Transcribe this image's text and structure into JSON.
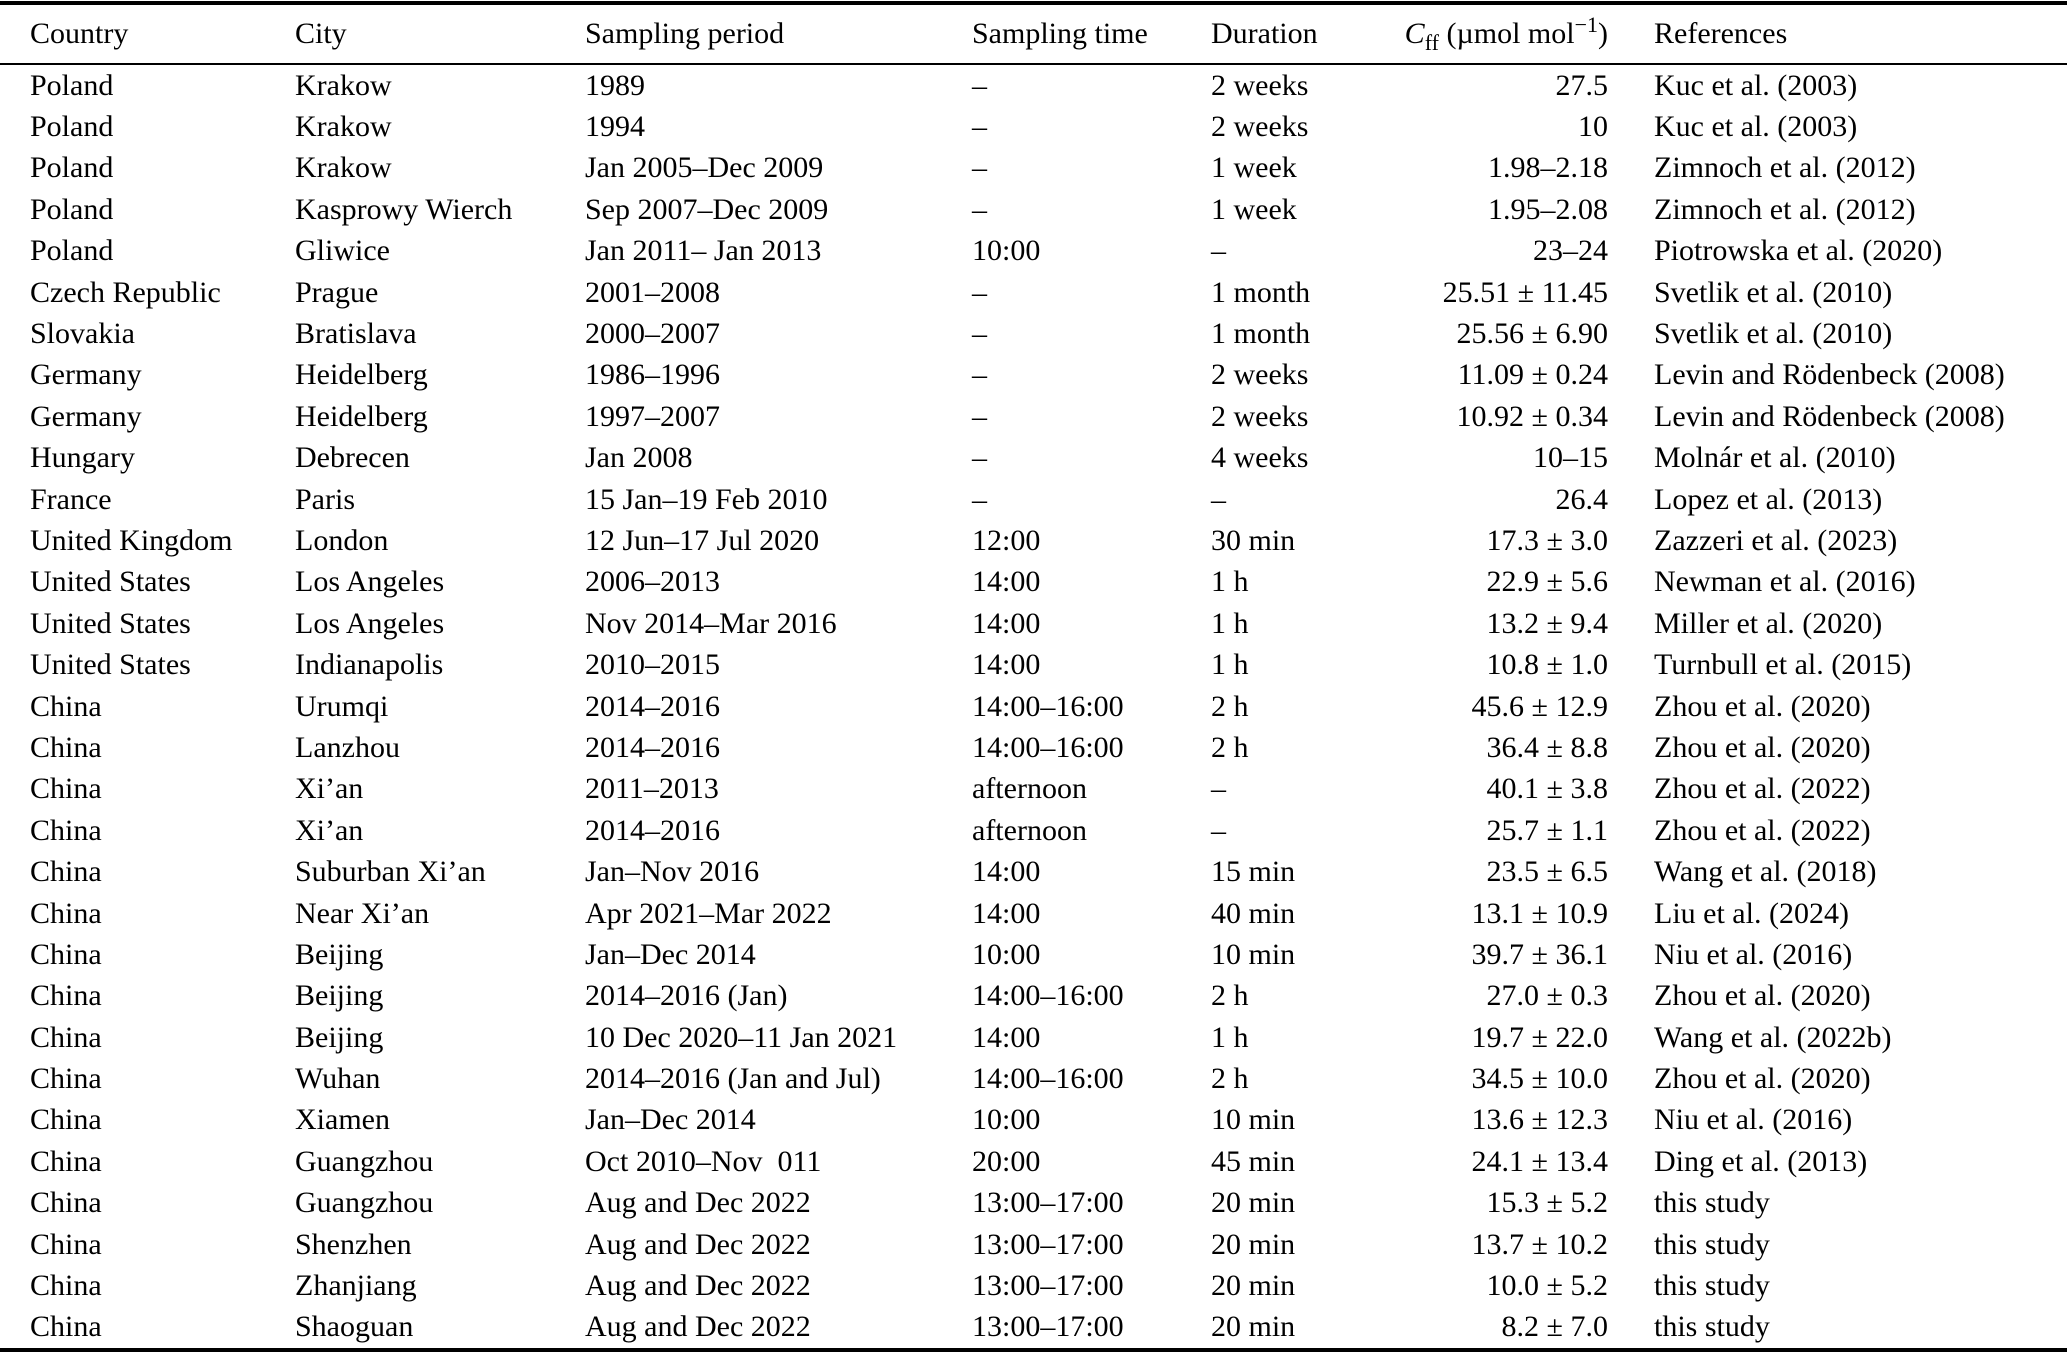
{
  "table": {
    "columns": [
      "Country",
      "City",
      "Sampling period",
      "Sampling time",
      "Duration",
      "Cff (µmol mol−1)",
      "References"
    ],
    "cff_header": {
      "symbol": "C",
      "subscript": "ff",
      "unit_prefix": " (µmol mol",
      "exponent": "−1",
      "unit_suffix": ")"
    },
    "rows": [
      [
        "Poland",
        "Krakow",
        "1989",
        "–",
        "2 weeks",
        "27.5",
        "Kuc et al. (2003)"
      ],
      [
        "Poland",
        "Krakow",
        "1994",
        "–",
        "2 weeks",
        "10",
        "Kuc et al. (2003)"
      ],
      [
        "Poland",
        "Krakow",
        "Jan 2005–Dec 2009",
        "–",
        "1 week",
        "1.98–2.18",
        "Zimnoch et al. (2012)"
      ],
      [
        "Poland",
        "Kasprowy Wierch",
        "Sep 2007–Dec 2009",
        "–",
        "1 week",
        "1.95–2.08",
        "Zimnoch et al. (2012)"
      ],
      [
        "Poland",
        "Gliwice",
        "Jan 2011– Jan 2013",
        "10:00",
        "–",
        "23–24",
        "Piotrowska et al. (2020)"
      ],
      [
        "Czech Republic",
        "Prague",
        "2001–2008",
        "–",
        "1 month",
        "25.51 ± 11.45",
        "Svetlik et al. (2010)"
      ],
      [
        "Slovakia",
        "Bratislava",
        "2000–2007",
        "–",
        "1 month",
        "25.56 ± 6.90",
        "Svetlik et al. (2010)"
      ],
      [
        "Germany",
        "Heidelberg",
        "1986–1996",
        "–",
        "2 weeks",
        "11.09 ± 0.24",
        "Levin and Rödenbeck (2008)"
      ],
      [
        "Germany",
        "Heidelberg",
        "1997–2007",
        "–",
        "2 weeks",
        "10.92 ± 0.34",
        "Levin and Rödenbeck (2008)"
      ],
      [
        "Hungary",
        "Debrecen",
        "Jan 2008",
        "–",
        "4 weeks",
        "10–15",
        "Molnár et al. (2010)"
      ],
      [
        "France",
        "Paris",
        "15 Jan–19 Feb 2010",
        "–",
        "–",
        "26.4",
        "Lopez et al. (2013)"
      ],
      [
        "United Kingdom",
        "London",
        "12 Jun–17 Jul 2020",
        "12:00",
        "30 min",
        "17.3 ± 3.0",
        "Zazzeri et al. (2023)"
      ],
      [
        "United States",
        "Los Angeles",
        "2006–2013",
        "14:00",
        "1 h",
        "22.9 ± 5.6",
        "Newman et al. (2016)"
      ],
      [
        "United States",
        "Los Angeles",
        "Nov 2014–Mar 2016",
        "14:00",
        "1 h",
        "13.2 ± 9.4",
        "Miller et al. (2020)"
      ],
      [
        "United States",
        "Indianapolis",
        "2010–2015",
        "14:00",
        "1 h",
        "10.8 ± 1.0",
        "Turnbull et al. (2015)"
      ],
      [
        "China",
        "Urumqi",
        "2014–2016",
        "14:00–16:00",
        "2 h",
        "45.6 ± 12.9",
        "Zhou et al. (2020)"
      ],
      [
        "China",
        "Lanzhou",
        "2014–2016",
        "14:00–16:00",
        "2 h",
        "36.4 ± 8.8",
        "Zhou et al. (2020)"
      ],
      [
        "China",
        "Xi’an",
        "2011–2013",
        "afternoon",
        "–",
        "40.1 ± 3.8",
        "Zhou et al. (2022)"
      ],
      [
        "China",
        "Xi’an",
        "2014–2016",
        "afternoon",
        "–",
        "25.7 ± 1.1",
        "Zhou et al. (2022)"
      ],
      [
        "China",
        "Suburban Xi’an",
        "Jan–Nov 2016",
        "14:00",
        "15 min",
        "23.5 ± 6.5",
        "Wang et al. (2018)"
      ],
      [
        "China",
        "Near Xi’an",
        "Apr 2021–Mar 2022",
        "14:00",
        "40 min",
        "13.1 ± 10.9",
        "Liu et al. (2024)"
      ],
      [
        "China",
        "Beijing",
        "Jan–Dec 2014",
        "10:00",
        "10 min",
        "39.7 ± 36.1",
        "Niu et al. (2016)"
      ],
      [
        "China",
        "Beijing",
        "2014–2016 (Jan)",
        "14:00–16:00",
        "2 h",
        "27.0 ± 0.3",
        "Zhou et al. (2020)"
      ],
      [
        "China",
        "Beijing",
        "10 Dec 2020–11 Jan 2021",
        "14:00",
        "1 h",
        "19.7 ± 22.0",
        "Wang et al. (2022b)"
      ],
      [
        "China",
        "Wuhan",
        "2014–2016 (Jan and Jul)",
        "14:00–16:00",
        "2 h",
        "34.5 ± 10.0",
        "Zhou et al. (2020)"
      ],
      [
        "China",
        "Xiamen",
        "Jan–Dec 2014",
        "10:00",
        "10 min",
        "13.6 ± 12.3",
        "Niu et al. (2016)"
      ],
      [
        "China",
        "Guangzhou",
        "Oct 2010–Nov  011",
        "20:00",
        "45 min",
        "24.1 ± 13.4",
        "Ding et al. (2013)"
      ],
      [
        "China",
        "Guangzhou",
        "Aug and Dec 2022",
        "13:00–17:00",
        "20 min",
        "15.3 ± 5.2",
        "this study"
      ],
      [
        "China",
        "Shenzhen",
        "Aug and Dec 2022",
        "13:00–17:00",
        "20 min",
        "13.7 ± 10.2",
        "this study"
      ],
      [
        "China",
        "Zhanjiang",
        "Aug and Dec 2022",
        "13:00–17:00",
        "20 min",
        "10.0 ± 5.2",
        "this study"
      ],
      [
        "China",
        "Shaoguan",
        "Aug and Dec 2022",
        "13:00–17:00",
        "20 min",
        "8.2 ± 7.0",
        "this study"
      ]
    ]
  }
}
